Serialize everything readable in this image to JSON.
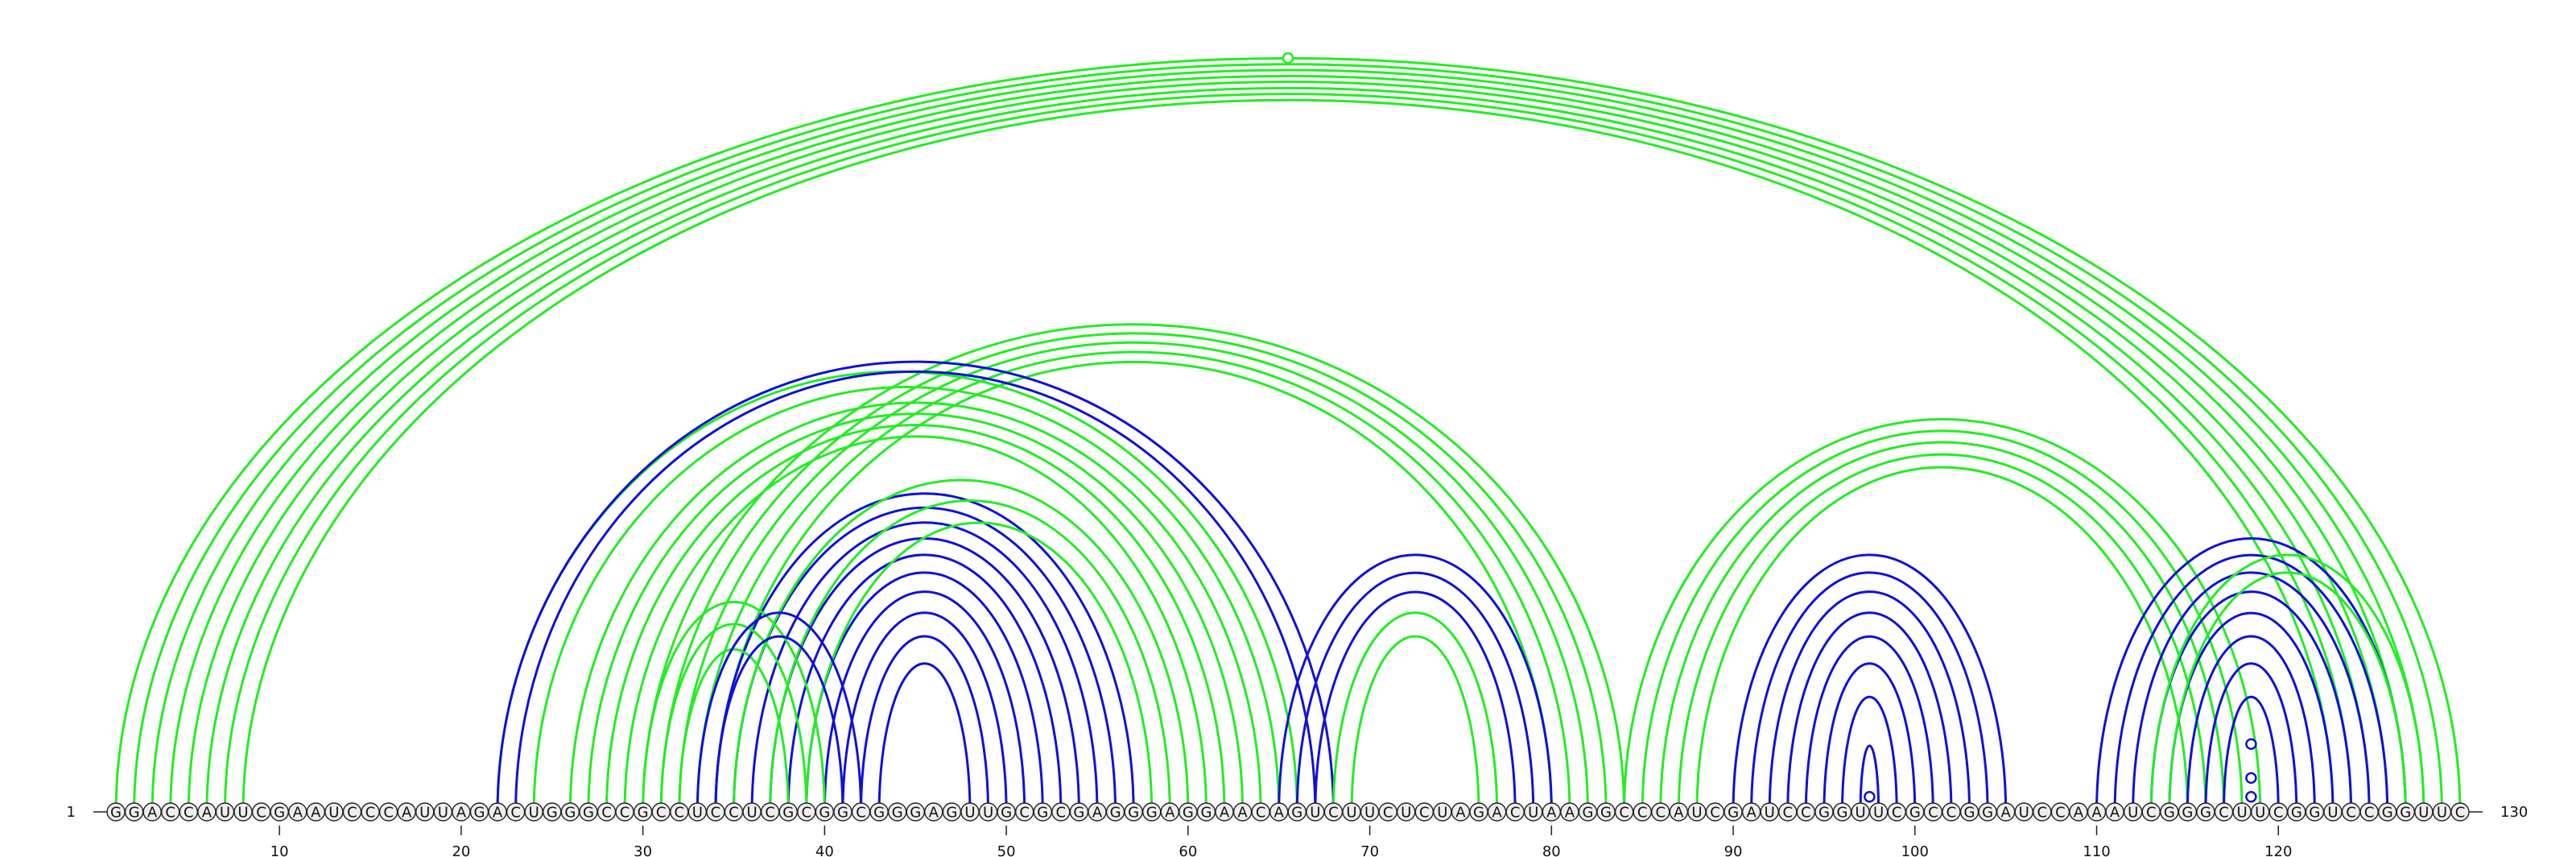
{
  "sequence": "GGACCAUUCGAAUCCCAUUAGACUGGGCCGCCUCCUCGCGGCGGGAGUUGCGCGAGGGAGGAACAGUCUUCUCUAGACUAAGGCCCAUCGAUCCGGUUCGCCGGAUCCAAAUCGGGCUUCGGUCCGGUUC",
  "start_label": "1",
  "end_label": "130",
  "ticks": [
    10,
    20,
    30,
    40,
    50,
    60,
    70,
    80,
    90,
    100,
    110,
    120
  ],
  "colors": {
    "green": "#22ee22",
    "blue": "#1010dd",
    "nucleotide_fill": "#eeeeee",
    "nucleotide_stroke": "#222222"
  },
  "arcs": {
    "green_top": [
      [
        1,
        130
      ],
      [
        2,
        129
      ],
      [
        3,
        128
      ],
      [
        4,
        127
      ],
      [
        5,
        126
      ],
      [
        6,
        125
      ],
      [
        7,
        124
      ],
      [
        8,
        123
      ]
    ],
    "green_mid": [
      [
        22,
        66
      ],
      [
        24,
        65
      ],
      [
        26,
        64
      ],
      [
        27,
        63
      ],
      [
        28,
        62
      ],
      [
        29,
        61
      ]
    ],
    "green_left": [
      [
        30,
        84
      ],
      [
        31,
        83
      ],
      [
        32,
        82
      ],
      [
        33,
        81
      ],
      [
        34,
        80
      ]
    ],
    "blue_mid": [
      [
        22,
        68
      ],
      [
        23,
        67
      ]
    ],
    "blue_inner": [
      [
        34,
        57
      ],
      [
        35,
        56
      ],
      [
        36,
        55
      ],
      [
        37,
        54
      ],
      [
        38,
        53
      ],
      [
        39,
        52
      ],
      [
        40,
        51
      ],
      [
        41,
        50
      ],
      [
        42,
        49
      ],
      [
        43,
        48
      ]
    ],
    "green_inner": [
      [
        35,
        60
      ],
      [
        37,
        59
      ],
      [
        39,
        58
      ]
    ],
    "green_small": [
      [
        30,
        40
      ],
      [
        31,
        39
      ],
      [
        32,
        38
      ]
    ],
    "blue_small": [
      [
        33,
        42
      ],
      [
        34,
        41
      ]
    ],
    "blue_66": [
      [
        65,
        80
      ],
      [
        66,
        79
      ],
      [
        67,
        78
      ]
    ],
    "green_66": [
      [
        68,
        77
      ],
      [
        69,
        76
      ]
    ],
    "green_right": [
      [
        84,
        119
      ],
      [
        85,
        118
      ],
      [
        86,
        117
      ],
      [
        87,
        116
      ],
      [
        88,
        115
      ]
    ],
    "blue_right": [
      [
        90,
        105
      ],
      [
        91,
        104
      ],
      [
        92,
        103
      ],
      [
        93,
        102
      ],
      [
        94,
        101
      ],
      [
        95,
        100
      ],
      [
        96,
        99
      ],
      [
        97,
        98
      ]
    ],
    "blue_far": [
      [
        110,
        127
      ],
      [
        111,
        126
      ],
      [
        112,
        125
      ],
      [
        113,
        124
      ],
      [
        114,
        123
      ],
      [
        115,
        122
      ],
      [
        116,
        121
      ],
      [
        117,
        120
      ]
    ],
    "green_far": [
      [
        113,
        128
      ],
      [
        114,
        127
      ]
    ]
  },
  "markers": [
    {
      "position": 65.5,
      "color": "green",
      "height": 1.0
    },
    {
      "position": 97.5,
      "color": "blue",
      "height": 0.02
    },
    {
      "position": 118.5,
      "color": "blue",
      "height": 0.02
    },
    {
      "position": 118.5,
      "color": "blue",
      "height": 0.045
    },
    {
      "position": 118.5,
      "color": "blue",
      "height": 0.09
    }
  ]
}
